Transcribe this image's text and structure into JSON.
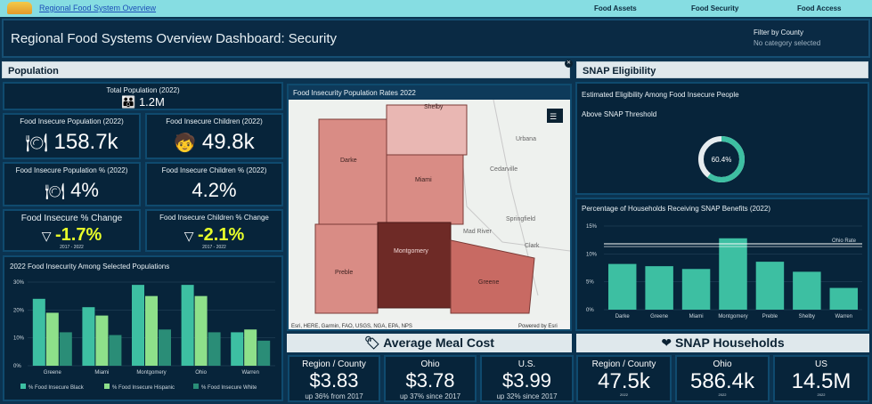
{
  "nav": {
    "site_link": "Regional Food System Overview",
    "items": [
      "Food Assets",
      "Food Security",
      "Food Access"
    ]
  },
  "header": {
    "title": "Regional Food Systems Overview Dashboard: Security",
    "filter_label": "Filter by County",
    "filter_value": "No category selected"
  },
  "population": {
    "section": "Population",
    "total_label": "Total Population (2022)",
    "total_value": "1.2M",
    "insecure_pop_label": "Food Insecure Population (2022)",
    "insecure_pop_value": "158.7k",
    "insecure_children_label": "Food Insecure Children (2022)",
    "insecure_children_value": "49.8k",
    "insecure_pop_pct_label": "Food Insecure Population % (2022)",
    "insecure_pop_pct_value": "4%",
    "insecure_children_pct_label": "Food Insecure Children % (2022)",
    "insecure_children_pct_value": "4.2%",
    "change_label": "Food Insecure % Change",
    "change_value": "-1.7%",
    "change_years": "2017 - 2022",
    "children_change_label": "Food Insecure Children % Change",
    "children_change_value": "-2.1%",
    "children_change_years": "2017 - 2022"
  },
  "map": {
    "title": "Food Insecurity Population Rates 2022",
    "counties": [
      "Darke",
      "Miami",
      "Shelby",
      "Montgomery",
      "Preble",
      "Greene"
    ],
    "places": [
      "Springfield",
      "Urbana",
      "Clark",
      "Cedarville",
      "Mad River"
    ],
    "attribution": "Esri, HERE, Garmin, FAO, USGS, NGA, EPA, NPS",
    "powered": "Powered by Esri",
    "colors": {
      "light": "#d98c85",
      "mid": "#c86a63",
      "dark": "#6e2a26",
      "darkest": "#4a1a18",
      "pale": "#e9b7b3"
    }
  },
  "snap": {
    "section": "SNAP Eligibility",
    "eligibility_title": "Estimated Eligibility Among Food Insecure People",
    "eligibility_sub": "Above SNAP Threshold",
    "donut_pct": 60.4,
    "donut_label": "60.4%",
    "accent": "#3dbfa2"
  },
  "meal": {
    "title": "Average Meal Cost",
    "cards": [
      {
        "label": "Region / County",
        "value": "$3.83",
        "sub": "up 36% from 2017"
      },
      {
        "label": "Ohio",
        "value": "$3.78",
        "sub": "up 37% since 2017"
      },
      {
        "label": "U.S.",
        "value": "$3.99",
        "sub": "up 32% since 2017"
      }
    ]
  },
  "households": {
    "title": "SNAP Households",
    "cards": [
      {
        "label": "Region / County",
        "value": "47.5k",
        "sub": "2022"
      },
      {
        "label": "Ohio",
        "value": "586.4k",
        "sub": "2022"
      },
      {
        "label": "US",
        "value": "14.5M",
        "sub": "2022"
      }
    ]
  },
  "chart_data": [
    {
      "type": "bar",
      "title": "2022 Food Insecurity Among Selected Populations",
      "categories": [
        "Greene",
        "Miami",
        "Montgomery",
        "Ohio",
        "Warren"
      ],
      "ylim": [
        0,
        30
      ],
      "yticks": [
        "0%",
        "10%",
        "20%",
        "30%"
      ],
      "series": [
        {
          "name": "% Food Insecure Black",
          "color": "#3dbfa2",
          "values": [
            24,
            21,
            29,
            29,
            12
          ]
        },
        {
          "name": "% Food Insecure Hispanic",
          "color": "#8ee08a",
          "values": [
            19,
            18,
            25,
            25,
            13
          ]
        },
        {
          "name": "% Food Insecure White",
          "color": "#2a8d77",
          "values": [
            12,
            11,
            13,
            12,
            9
          ]
        }
      ]
    },
    {
      "type": "bar",
      "title": "Percentage of Households Receiving SNAP Benefits (2022)",
      "categories": [
        "Darke",
        "Greene",
        "Miami",
        "Montgomery",
        "Preble",
        "Shelby",
        "Warren"
      ],
      "values": [
        8.2,
        7.8,
        7.3,
        12.8,
        8.6,
        6.8,
        3.9
      ],
      "ylim": [
        0,
        15
      ],
      "yticks": [
        "0%",
        "5%",
        "10%",
        "15%"
      ],
      "reference": {
        "label": "Ohio Rate",
        "value": 11.8
      },
      "color": "#3dbfa2"
    }
  ]
}
